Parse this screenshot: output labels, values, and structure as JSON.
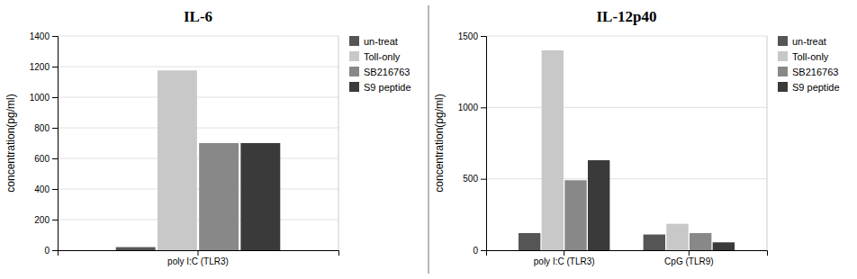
{
  "chart_data": [
    {
      "type": "bar",
      "title": "IL-6",
      "ylabel": "concentration(pg/ml)",
      "categories": [
        "poly I:C (TLR3)"
      ],
      "series": [
        {
          "name": "un-treat",
          "color": "#555555",
          "values": [
            20
          ]
        },
        {
          "name": "Toll-only",
          "color": "#c8c8c8",
          "values": [
            1175
          ]
        },
        {
          "name": "SB216763",
          "color": "#888888",
          "values": [
            700
          ]
        },
        {
          "name": "S9 peptide",
          "color": "#3a3a3a",
          "values": [
            700
          ]
        }
      ],
      "ylim": [
        0,
        1400
      ],
      "yticks": [
        0,
        200,
        400,
        600,
        800,
        1000,
        1200,
        1400
      ],
      "grid": true,
      "legend": "upper right"
    },
    {
      "type": "bar",
      "title": "IL-12p40",
      "ylabel": "concentration(pg/ml)",
      "categories": [
        "poly I:C (TLR3)",
        "CpG (TLR9)"
      ],
      "series": [
        {
          "name": "un-treat",
          "color": "#555555",
          "values": [
            120,
            110
          ]
        },
        {
          "name": "Toll-only",
          "color": "#c8c8c8",
          "values": [
            1400,
            185
          ]
        },
        {
          "name": "SB216763",
          "color": "#888888",
          "values": [
            490,
            120
          ]
        },
        {
          "name": "S9 peptide",
          "color": "#3a3a3a",
          "values": [
            630,
            55
          ]
        }
      ],
      "ylim": [
        0,
        1500
      ],
      "yticks": [
        0,
        500,
        1000,
        1500
      ],
      "grid": true,
      "legend": "upper right"
    }
  ]
}
